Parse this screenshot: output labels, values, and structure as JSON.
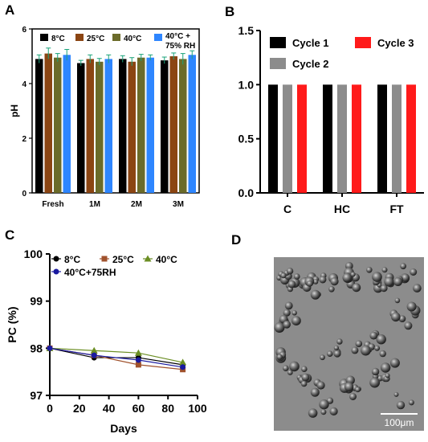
{
  "panels": {
    "A": "A",
    "B": "B",
    "C": "C",
    "D": "D"
  },
  "chart_data": [
    {
      "type": "bar",
      "ylabel": "pH",
      "xlabel": "",
      "ylim": [
        0,
        6
      ],
      "yticks": [
        "0",
        "2",
        "4",
        "6"
      ],
      "categories": [
        "Fresh",
        "1M",
        "2M",
        "3M"
      ],
      "legend_position": "top",
      "series": [
        {
          "name": "8°C",
          "color": "#000000",
          "values": [
            4.9,
            4.75,
            4.9,
            4.85
          ],
          "errors": [
            0.15,
            0.1,
            0.12,
            0.12
          ]
        },
        {
          "name": "25°C",
          "color": "#8B4513",
          "values": [
            5.1,
            4.9,
            4.8,
            5.0
          ],
          "errors": [
            0.2,
            0.15,
            0.15,
            0.12
          ]
        },
        {
          "name": "40°C",
          "color": "#6B6B2A",
          "values": [
            4.95,
            4.8,
            4.95,
            4.9
          ],
          "errors": [
            0.15,
            0.12,
            0.12,
            0.2
          ]
        },
        {
          "name": "40°C + 75% RH",
          "color": "#2E86FF",
          "values": [
            5.05,
            4.9,
            4.95,
            5.05
          ],
          "errors": [
            0.2,
            0.15,
            0.1,
            0.15
          ]
        }
      ]
    },
    {
      "type": "bar",
      "ylabel": "",
      "xlabel": "",
      "ylim": [
        0,
        1.5
      ],
      "yticks": [
        "0.0",
        "0.5",
        "1.0",
        "1.5"
      ],
      "categories": [
        "C",
        "HC",
        "FT"
      ],
      "legend_position": "top",
      "series": [
        {
          "name": "Cycle 1",
          "color": "#000000",
          "values": [
            1.0,
            1.0,
            1.0
          ]
        },
        {
          "name": "Cycle 2",
          "color": "#8C8C8C",
          "values": [
            1.0,
            1.0,
            1.0
          ]
        },
        {
          "name": "Cycle 3",
          "color": "#FF1A1A",
          "values": [
            1.0,
            1.0,
            1.0
          ]
        }
      ]
    },
    {
      "type": "line",
      "xlabel": "Days",
      "ylabel": "PC (%)",
      "xlim": [
        0,
        100
      ],
      "ylim": [
        97,
        100
      ],
      "xticks": [
        "0",
        "20",
        "40",
        "60",
        "80",
        "100"
      ],
      "yticks": [
        "97",
        "98",
        "99",
        "100"
      ],
      "legend_position": "top",
      "series": [
        {
          "name": "8°C",
          "color": "#000000",
          "marker": "circle",
          "x": [
            0,
            30,
            60,
            90
          ],
          "y": [
            98.0,
            97.8,
            97.8,
            97.65
          ]
        },
        {
          "name": "25°C",
          "color": "#A0522D",
          "marker": "square",
          "x": [
            0,
            30,
            60,
            90
          ],
          "y": [
            98.0,
            97.85,
            97.65,
            97.55
          ]
        },
        {
          "name": "40°C",
          "color": "#6B8E23",
          "marker": "triangle",
          "x": [
            0,
            30,
            60,
            90
          ],
          "y": [
            98.0,
            97.95,
            97.9,
            97.7
          ]
        },
        {
          "name": "40°C+75RH",
          "color": "#1A1AA0",
          "marker": "circle",
          "x": [
            0,
            30,
            60,
            90
          ],
          "y": [
            98.0,
            97.85,
            97.75,
            97.6
          ]
        }
      ]
    }
  ],
  "micrograph": {
    "scale_label": "100μm"
  }
}
